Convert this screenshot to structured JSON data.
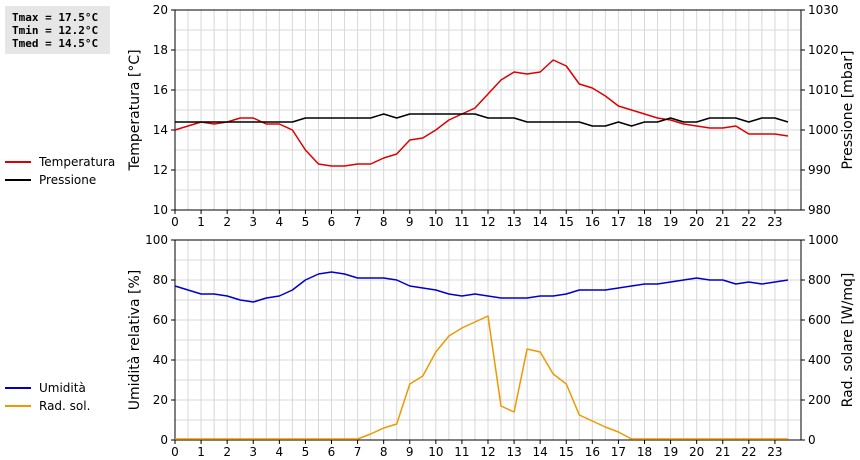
{
  "stats": {
    "tmax": "Tmax = 17.5°C",
    "tmin": "Tmin = 12.2°C",
    "tmed": "Tmed = 14.5°C"
  },
  "legend_top": [
    {
      "label": "Temperatura",
      "color": "#dd0000"
    },
    {
      "label": "Pressione",
      "color": "#000000"
    }
  ],
  "legend_bottom": [
    {
      "label": "Umidità",
      "color": "#0000cc"
    },
    {
      "label": "Rad. sol.",
      "color": "#ee9900"
    }
  ],
  "chart_data": [
    {
      "type": "line",
      "x_ticks": [
        "0",
        "1",
        "2",
        "3",
        "4",
        "5",
        "6",
        "7",
        "8",
        "9",
        "10",
        "11",
        "12",
        "13",
        "14",
        "15",
        "16",
        "17",
        "18",
        "19",
        "20",
        "21",
        "22",
        "23"
      ],
      "xlim": [
        0,
        24
      ],
      "ylabel": "Temperatura [°C]",
      "ylim": [
        10,
        20
      ],
      "y_ticks": [
        10,
        12,
        14,
        16,
        18,
        20
      ],
      "y2label": "Pressione [mbar]",
      "y2lim": [
        980,
        1030
      ],
      "y2_ticks": [
        980,
        990,
        1000,
        1010,
        1020,
        1030
      ],
      "grid": true,
      "series": [
        {
          "name": "Temperatura",
          "axis": "left",
          "color": "#dd0000",
          "x": [
            0,
            0.5,
            1,
            1.5,
            2,
            2.5,
            3,
            3.5,
            4,
            4.5,
            5,
            5.5,
            6,
            6.5,
            7,
            7.5,
            8,
            8.5,
            9,
            9.5,
            10,
            10.5,
            11,
            11.5,
            12,
            12.5,
            13,
            13.5,
            14,
            14.5,
            15,
            15.5,
            16,
            16.5,
            17,
            17.5,
            18,
            18.5,
            19,
            19.5,
            20,
            20.5,
            21,
            21.5,
            22,
            22.5,
            23,
            23.5
          ],
          "y": [
            14.0,
            14.2,
            14.4,
            14.3,
            14.4,
            14.6,
            14.6,
            14.3,
            14.3,
            14.0,
            13.0,
            12.3,
            12.2,
            12.2,
            12.3,
            12.3,
            12.6,
            12.8,
            13.5,
            13.6,
            14.0,
            14.5,
            14.8,
            15.1,
            15.8,
            16.5,
            16.9,
            16.8,
            16.9,
            17.5,
            17.2,
            16.3,
            16.1,
            15.7,
            15.2,
            15.0,
            14.8,
            14.6,
            14.5,
            14.3,
            14.2,
            14.1,
            14.1,
            14.2,
            13.8,
            13.8,
            13.8,
            13.7
          ]
        },
        {
          "name": "Pressione",
          "axis": "right",
          "color": "#000000",
          "x": [
            0,
            0.5,
            1,
            1.5,
            2,
            2.5,
            3,
            3.5,
            4,
            4.5,
            5,
            5.5,
            6,
            6.5,
            7,
            7.5,
            8,
            8.5,
            9,
            9.5,
            10,
            10.5,
            11,
            11.5,
            12,
            12.5,
            13,
            13.5,
            14,
            14.5,
            15,
            15.5,
            16,
            16.5,
            17,
            17.5,
            18,
            18.5,
            19,
            19.5,
            20,
            20.5,
            21,
            21.5,
            22,
            22.5,
            23,
            23.5
          ],
          "y": [
            1002,
            1002,
            1002,
            1002,
            1002,
            1002,
            1002,
            1002,
            1002,
            1002,
            1003,
            1003,
            1003,
            1003,
            1003,
            1003,
            1004,
            1003,
            1004,
            1004,
            1004,
            1004,
            1004,
            1004,
            1003,
            1003,
            1003,
            1002,
            1002,
            1002,
            1002,
            1002,
            1001,
            1001,
            1002,
            1001,
            1002,
            1002,
            1003,
            1002,
            1002,
            1003,
            1003,
            1003,
            1002,
            1003,
            1003,
            1002
          ]
        }
      ]
    },
    {
      "type": "line",
      "x_ticks": [
        "0",
        "1",
        "2",
        "3",
        "4",
        "5",
        "6",
        "7",
        "8",
        "9",
        "10",
        "11",
        "12",
        "13",
        "14",
        "15",
        "16",
        "17",
        "18",
        "19",
        "20",
        "21",
        "22",
        "23"
      ],
      "xlim": [
        0,
        24
      ],
      "ylabel": "Umidità relativa [%]",
      "ylim": [
        0,
        100
      ],
      "y_ticks": [
        0,
        20,
        40,
        60,
        80,
        100
      ],
      "y2label": "Rad. solare [W/mq]",
      "y2lim": [
        0,
        1000
      ],
      "y2_ticks": [
        0,
        200,
        400,
        600,
        800,
        1000
      ],
      "grid": true,
      "series": [
        {
          "name": "Umidità",
          "axis": "left",
          "color": "#0000cc",
          "x": [
            0,
            0.5,
            1,
            1.5,
            2,
            2.5,
            3,
            3.5,
            4,
            4.5,
            5,
            5.5,
            6,
            6.5,
            7,
            7.5,
            8,
            8.5,
            9,
            9.5,
            10,
            10.5,
            11,
            11.5,
            12,
            12.5,
            13,
            13.5,
            14,
            14.5,
            15,
            15.5,
            16,
            16.5,
            17,
            17.5,
            18,
            18.5,
            19,
            19.5,
            20,
            20.5,
            21,
            21.5,
            22,
            22.5,
            23,
            23.5
          ],
          "y": [
            77,
            75,
            73,
            73,
            72,
            70,
            69,
            71,
            72,
            75,
            80,
            83,
            84,
            83,
            81,
            81,
            81,
            80,
            77,
            76,
            75,
            73,
            72,
            73,
            72,
            71,
            71,
            71,
            72,
            72,
            73,
            75,
            75,
            75,
            76,
            77,
            78,
            78,
            79,
            80,
            81,
            80,
            80,
            78,
            79,
            78,
            79,
            80
          ]
        },
        {
          "name": "Rad. sol.",
          "axis": "right",
          "color": "#ee9900",
          "x": [
            0,
            0.5,
            1,
            1.5,
            2,
            2.5,
            3,
            3.5,
            4,
            4.5,
            5,
            5.5,
            6,
            6.5,
            7,
            7.5,
            8,
            8.5,
            9,
            9.5,
            10,
            10.5,
            11,
            11.5,
            12,
            12.5,
            13,
            13.5,
            14,
            14.5,
            15,
            15.5,
            16,
            16.5,
            17,
            17.5,
            18,
            18.5,
            19,
            19.5,
            20,
            20.5,
            21,
            21.5,
            22,
            22.5,
            23,
            23.5
          ],
          "y": [
            5,
            5,
            5,
            5,
            5,
            5,
            5,
            5,
            5,
            5,
            5,
            5,
            5,
            5,
            5,
            30,
            60,
            80,
            280,
            320,
            440,
            520,
            560,
            590,
            620,
            170,
            140,
            455,
            440,
            330,
            280,
            125,
            95,
            65,
            40,
            5,
            5,
            5,
            5,
            5,
            5,
            5,
            5,
            5,
            5,
            5,
            5,
            5
          ]
        }
      ]
    }
  ]
}
